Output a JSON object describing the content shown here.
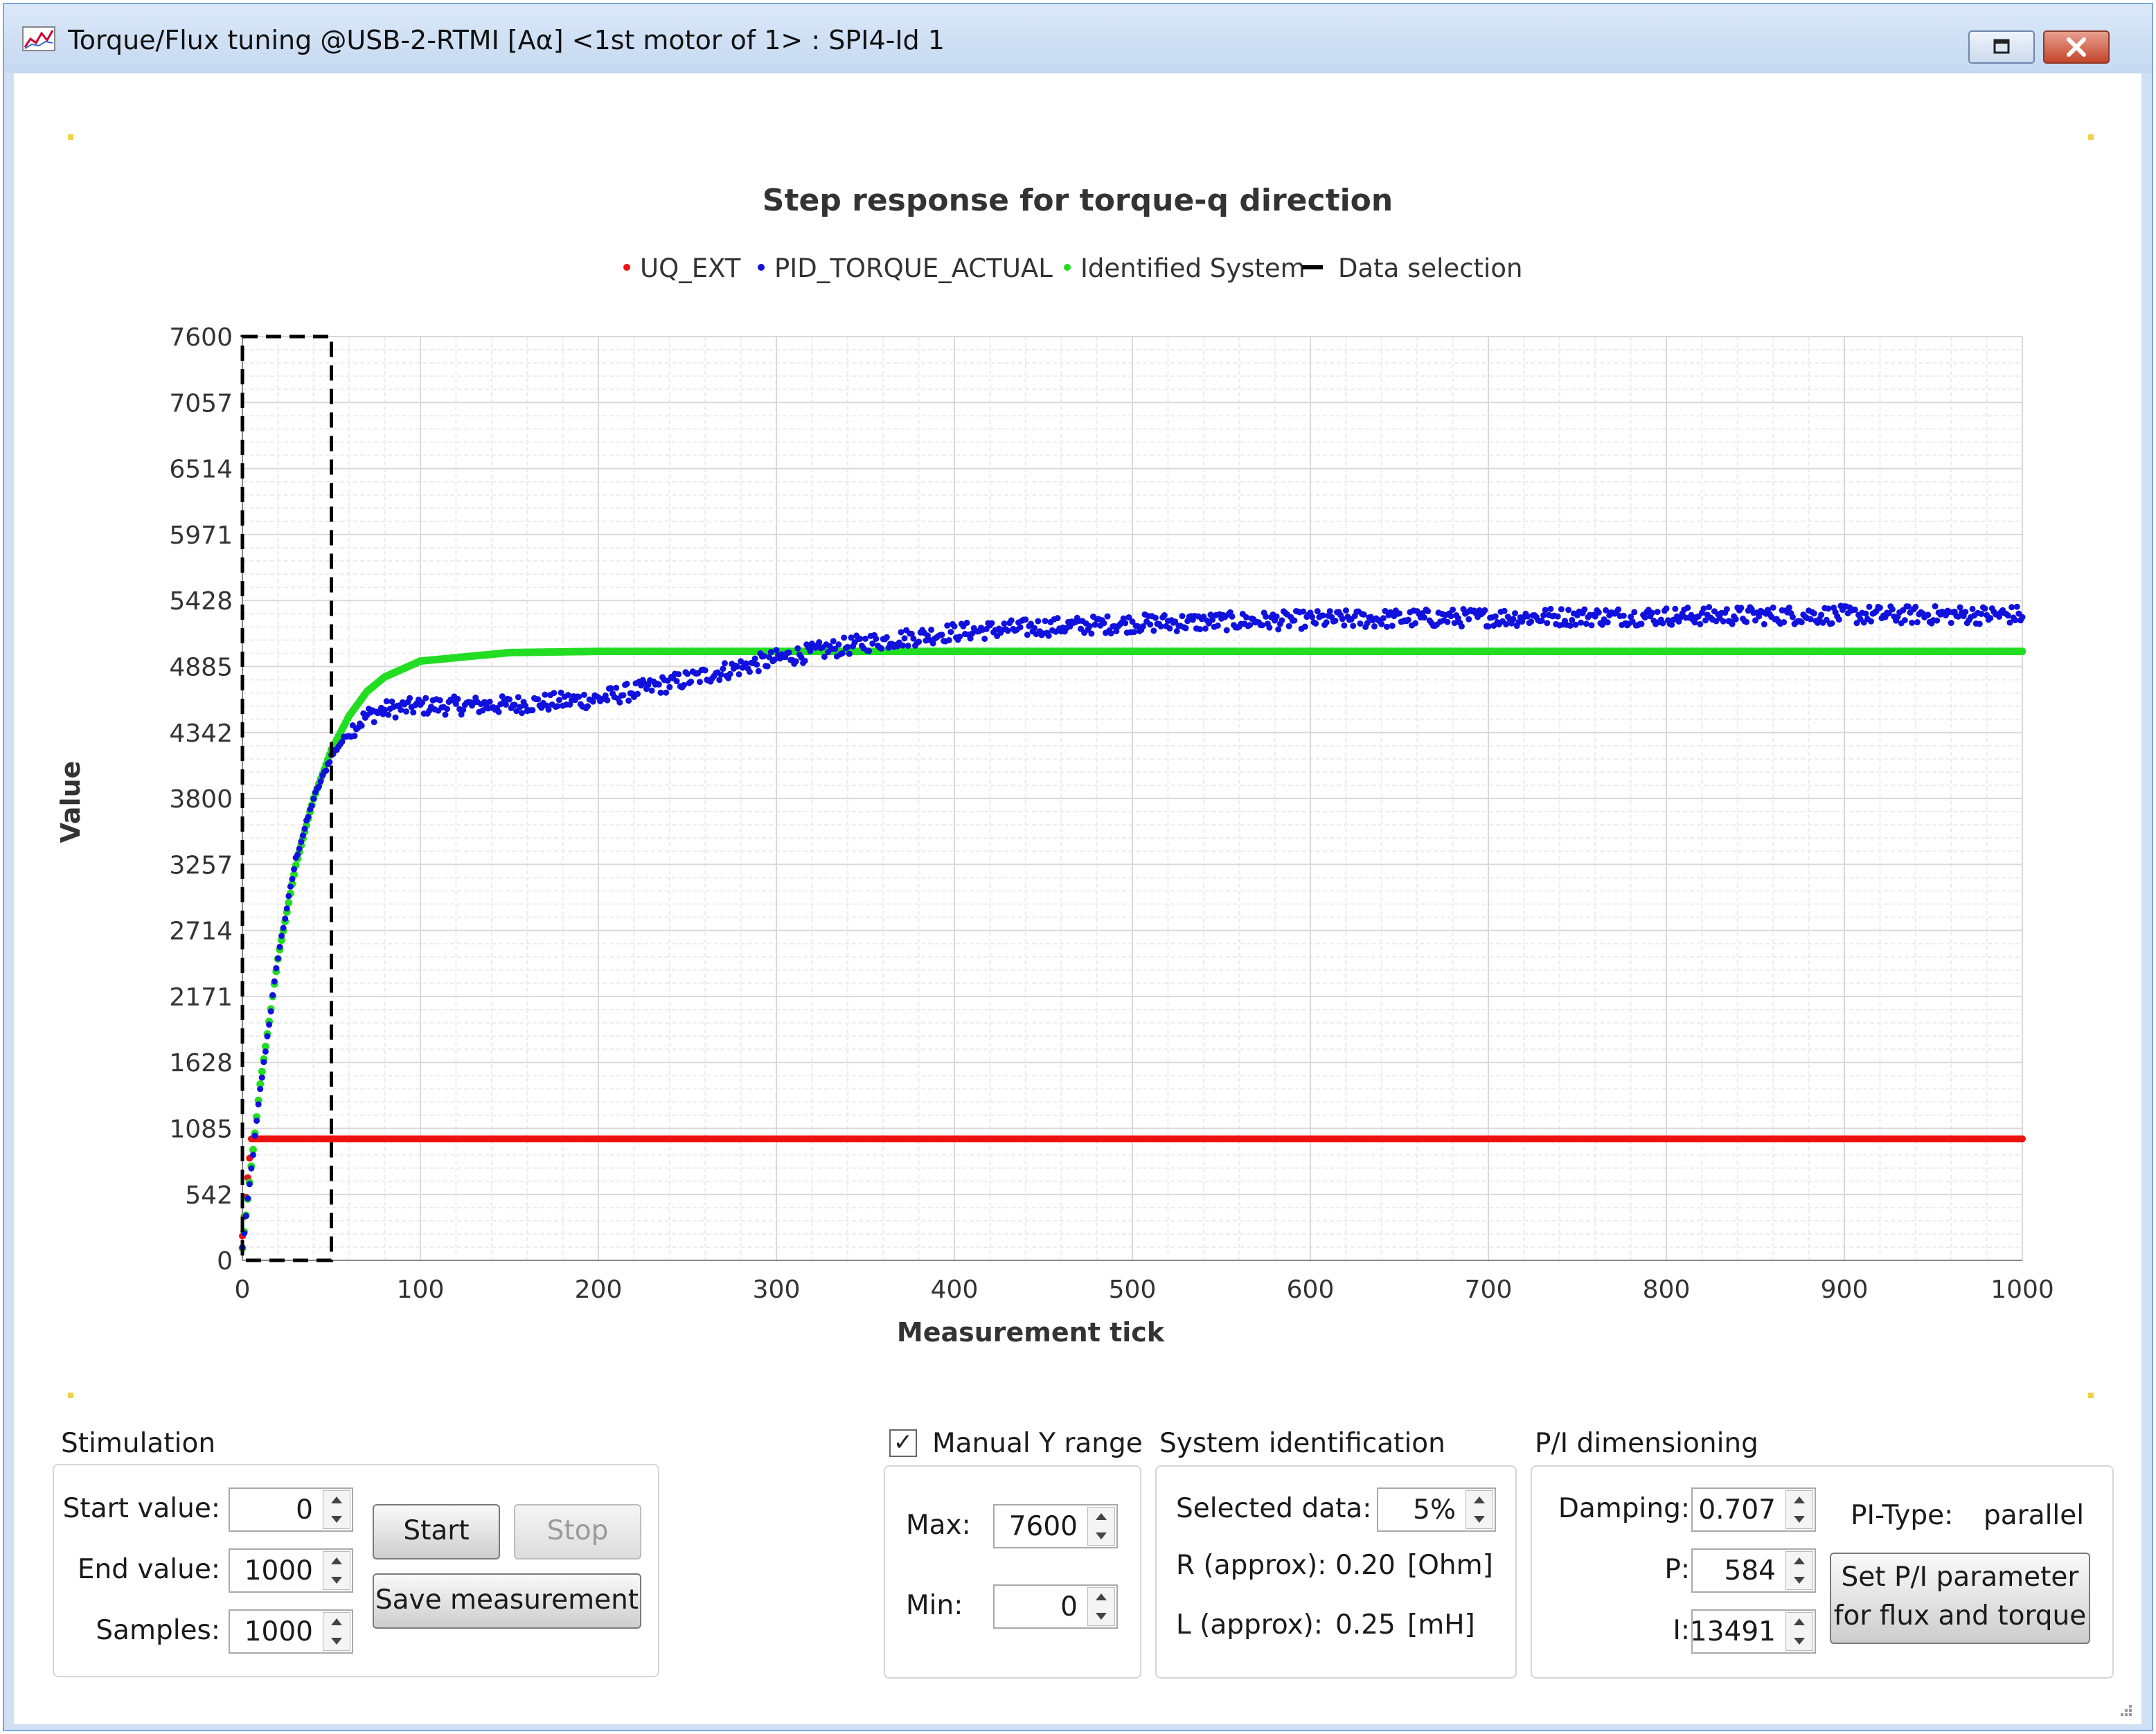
{
  "window": {
    "title": "Torque/Flux tuning @USB-2-RTMI [Aα] <1st motor of 1> : SPI4-Id 1",
    "controls": [
      "restore-icon",
      "close-icon"
    ]
  },
  "chart_data": {
    "type": "scatter",
    "title": "Step response for torque-q direction",
    "xlabel": "Measurement tick",
    "ylabel": "Value",
    "xlim": [
      0,
      1000
    ],
    "ylim": [
      0,
      7600
    ],
    "x_ticks": [
      "0",
      "100",
      "200",
      "300",
      "400",
      "500",
      "600",
      "700",
      "800",
      "900",
      "1000"
    ],
    "y_ticks": [
      "0",
      "542",
      "1085",
      "1628",
      "2171",
      "2714",
      "3257",
      "3800",
      "4342",
      "4885",
      "5428",
      "5971",
      "6514",
      "7057",
      "7600"
    ],
    "grid": true,
    "legend_position": "top",
    "series": [
      {
        "name": "UQ_EXT",
        "color": "#ee1111",
        "x": [
          0,
          5,
          10,
          50,
          100,
          200,
          300,
          400,
          500,
          600,
          700,
          800,
          900,
          1000
        ],
        "y": [
          200,
          1000,
          1000,
          1000,
          1000,
          1000,
          1000,
          1000,
          1000,
          1000,
          1000,
          1000,
          1000,
          1000
        ]
      },
      {
        "name": "PID_TORQUE_ACTUAL",
        "color": "#1111dd",
        "x": [
          0,
          10,
          20,
          30,
          40,
          50,
          60,
          70,
          80,
          100,
          150,
          200,
          250,
          300,
          350,
          400,
          450,
          500,
          600,
          700,
          800,
          900,
          1000
        ],
        "y": [
          100,
          1400,
          2500,
          3300,
          3800,
          4150,
          4350,
          4480,
          4530,
          4560,
          4570,
          4620,
          4780,
          4950,
          5080,
          5170,
          5210,
          5240,
          5270,
          5290,
          5300,
          5310,
          5310
        ]
      },
      {
        "name": "Identified System",
        "color": "#22dd22",
        "x": [
          0,
          10,
          20,
          30,
          40,
          50,
          60,
          70,
          80,
          100,
          150,
          200,
          300,
          400,
          500,
          600,
          700,
          800,
          900,
          1000
        ],
        "y": [
          100,
          1450,
          2480,
          3250,
          3800,
          4200,
          4480,
          4680,
          4800,
          4930,
          5000,
          5010,
          5010,
          5010,
          5010,
          5010,
          5010,
          5010,
          5010,
          5010
        ]
      },
      {
        "name": "Data selection",
        "color": "#000000",
        "x_range": [
          0,
          50
        ],
        "y_range": [
          0,
          7600
        ]
      }
    ]
  },
  "stimulation": {
    "label": "Stimulation",
    "start_label": "Start value:",
    "start_value": "0",
    "end_label": "End value:",
    "end_value": "1000",
    "samples_label": "Samples:",
    "samples_value": "1000",
    "start_button": "Start",
    "stop_button": "Stop",
    "save_button": "Save measurement"
  },
  "y_range": {
    "checkbox_label": "Manual Y  range",
    "checked": true,
    "check_mark": "✓",
    "max_label": "Max:",
    "max_value": "7600",
    "min_label": "Min:",
    "min_value": "0"
  },
  "system_identification": {
    "label": "System identification",
    "selected_label": "Selected data:",
    "selected_value": "5%",
    "r_label": "R (approx):",
    "r_value": "0.20",
    "r_unit": "[Ohm]",
    "l_label": "L (approx):",
    "l_value": "0.25",
    "l_unit": "[mH]"
  },
  "pi_dimensioning": {
    "label": "P/I dimensioning",
    "damping_label": "Damping:",
    "damping_value": "0.707",
    "p_label": "P:",
    "p_value": "584",
    "i_label": "I:",
    "i_value": "13491",
    "pi_type_label": "PI-Type:",
    "pi_type_value": "parallel",
    "set_button_line1": "Set P/I parameter",
    "set_button_line2": "for flux and torque"
  }
}
